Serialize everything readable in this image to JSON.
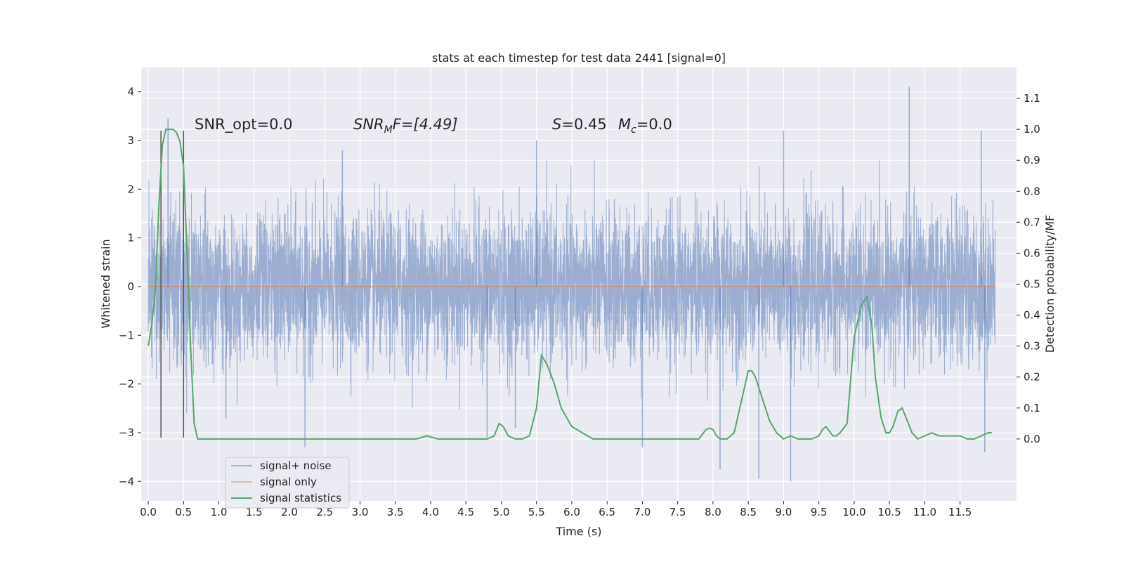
{
  "chart_data": {
    "type": "line",
    "title": "stats at each timestep for test data 2441 [signal=0]",
    "xlabel": "Time (s)",
    "ylabel_left": "Whitened strain",
    "ylabel_right": "Detection probability/MF",
    "xlim": [
      -0.1,
      12.3
    ],
    "ylim_left": [
      -4.4,
      4.5
    ],
    "ylim_right": [
      -0.2,
      1.2
    ],
    "x_ticks": [
      0.0,
      0.5,
      1.0,
      1.5,
      2.0,
      2.5,
      3.0,
      3.5,
      4.0,
      4.5,
      5.0,
      5.5,
      6.0,
      6.5,
      7.0,
      7.5,
      8.0,
      8.5,
      9.0,
      9.5,
      10.0,
      10.5,
      11.0,
      11.5
    ],
    "x_tick_labels": [
      "0.0",
      "0.5",
      "1.0",
      "1.5",
      "2.0",
      "2.5",
      "3.0",
      "3.5",
      "4.0",
      "4.5",
      "5.0",
      "5.5",
      "6.0",
      "6.5",
      "7.0",
      "7.5",
      "8.0",
      "8.5",
      "9.0",
      "9.5",
      "10.0",
      "10.5",
      "11.0",
      "11.5"
    ],
    "y_left_ticks": [
      4,
      3,
      2,
      1,
      0,
      -1,
      -2,
      -3,
      -4
    ],
    "y_left_tick_labels": [
      "4",
      "3",
      "2",
      "1",
      "0",
      "−1",
      "−2",
      "−3",
      "−4"
    ],
    "y_right_ticks": [
      1.1,
      1.0,
      0.9,
      0.8,
      0.7,
      0.6,
      0.5,
      0.4,
      0.3,
      0.2,
      0.1,
      0.0
    ],
    "y_right_tick_labels": [
      "1.1",
      "1.0",
      "0.9",
      "0.8",
      "0.7",
      "0.6",
      "0.5",
      "0.4",
      "0.3",
      "0.2",
      "0.1",
      "0.0"
    ],
    "grid": true,
    "legend_position": "lower-left",
    "annotations": {
      "snr_opt": "SNR_opt=0.0",
      "snr_mf_sym": "SNR",
      "snr_mf_sub": "M",
      "snr_mf_tail": "F=[4.49]",
      "s_sym": "S",
      "s_tail": "=0.45",
      "mc_sym": "M",
      "mc_sub": "c",
      "mc_tail": "=0.0"
    },
    "series": [
      {
        "name": "signal+ noise",
        "axis": "left",
        "color": "#4c72b0",
        "note_envelope": "dense noise spanning about -2.2 to 2.2 with spikes",
        "x_range": [
          0.0,
          12.0
        ],
        "spikes": [
          {
            "x": 0.28,
            "y": 3.45
          },
          {
            "x": 1.1,
            "y": -2.7
          },
          {
            "x": 2.22,
            "y": -3.3
          },
          {
            "x": 2.75,
            "y": 2.8
          },
          {
            "x": 4.8,
            "y": -3.1
          },
          {
            "x": 5.2,
            "y": -2.9
          },
          {
            "x": 5.5,
            "y": 3.0
          },
          {
            "x": 7.0,
            "y": -3.3
          },
          {
            "x": 8.1,
            "y": -3.75
          },
          {
            "x": 8.65,
            "y": -3.95
          },
          {
            "x": 9.0,
            "y": 3.2
          },
          {
            "x": 9.1,
            "y": -4.0
          },
          {
            "x": 10.78,
            "y": 4.1
          },
          {
            "x": 11.8,
            "y": 3.2
          },
          {
            "x": 11.85,
            "y": -3.4
          }
        ]
      },
      {
        "name": "signal only",
        "axis": "left",
        "color": "#dd8452",
        "x": [
          0.0,
          12.0
        ],
        "y": [
          0.0,
          0.0
        ]
      },
      {
        "name": "signal statistics",
        "axis": "right",
        "color": "#55a868",
        "x": [
          0.0,
          0.05,
          0.1,
          0.15,
          0.2,
          0.25,
          0.3,
          0.35,
          0.4,
          0.45,
          0.5,
          0.55,
          0.6,
          0.65,
          0.7,
          0.75,
          0.8,
          1.0,
          2.0,
          3.0,
          3.8,
          3.95,
          4.1,
          4.3,
          4.8,
          4.9,
          4.97,
          5.03,
          5.1,
          5.2,
          5.3,
          5.4,
          5.5,
          5.57,
          5.65,
          5.75,
          5.85,
          6.0,
          6.3,
          7.0,
          7.5,
          7.7,
          7.8,
          7.9,
          7.95,
          8.0,
          8.05,
          8.1,
          8.2,
          8.3,
          8.4,
          8.5,
          8.55,
          8.6,
          8.7,
          8.8,
          8.9,
          9.0,
          9.1,
          9.2,
          9.3,
          9.4,
          9.5,
          9.55,
          9.6,
          9.7,
          9.75,
          9.8,
          9.9,
          10.0,
          10.1,
          10.18,
          10.25,
          10.3,
          10.38,
          10.45,
          10.5,
          10.55,
          10.62,
          10.68,
          10.75,
          10.82,
          10.9,
          11.0,
          11.1,
          11.2,
          11.3,
          11.4,
          11.5,
          11.6,
          11.7,
          11.8,
          11.9,
          11.95
        ],
        "y": [
          0.3,
          0.37,
          0.48,
          0.75,
          0.95,
          1.0,
          1.0,
          1.0,
          0.99,
          0.96,
          0.88,
          0.6,
          0.3,
          0.05,
          0.0,
          0.0,
          0.0,
          0.0,
          0.0,
          0.0,
          0.0,
          0.01,
          0.0,
          0.0,
          0.0,
          0.01,
          0.05,
          0.04,
          0.01,
          0.0,
          0.0,
          0.01,
          0.1,
          0.27,
          0.24,
          0.18,
          0.1,
          0.04,
          0.0,
          0.0,
          0.0,
          0.0,
          0.0,
          0.03,
          0.035,
          0.03,
          0.01,
          0.0,
          0.0,
          0.02,
          0.12,
          0.22,
          0.22,
          0.2,
          0.13,
          0.06,
          0.02,
          0.0,
          0.01,
          0.0,
          0.0,
          0.0,
          0.01,
          0.03,
          0.04,
          0.01,
          0.01,
          0.02,
          0.05,
          0.33,
          0.43,
          0.46,
          0.37,
          0.2,
          0.07,
          0.02,
          0.02,
          0.04,
          0.09,
          0.1,
          0.06,
          0.02,
          0.0,
          0.01,
          0.02,
          0.01,
          0.01,
          0.01,
          0.01,
          0.0,
          0.0,
          0.01,
          0.02,
          0.02
        ]
      }
    ],
    "vertical_markers": {
      "color": "#555555",
      "x": [
        0.18,
        0.5
      ],
      "y_top": 3.2,
      "y_bottom": -3.1
    }
  }
}
